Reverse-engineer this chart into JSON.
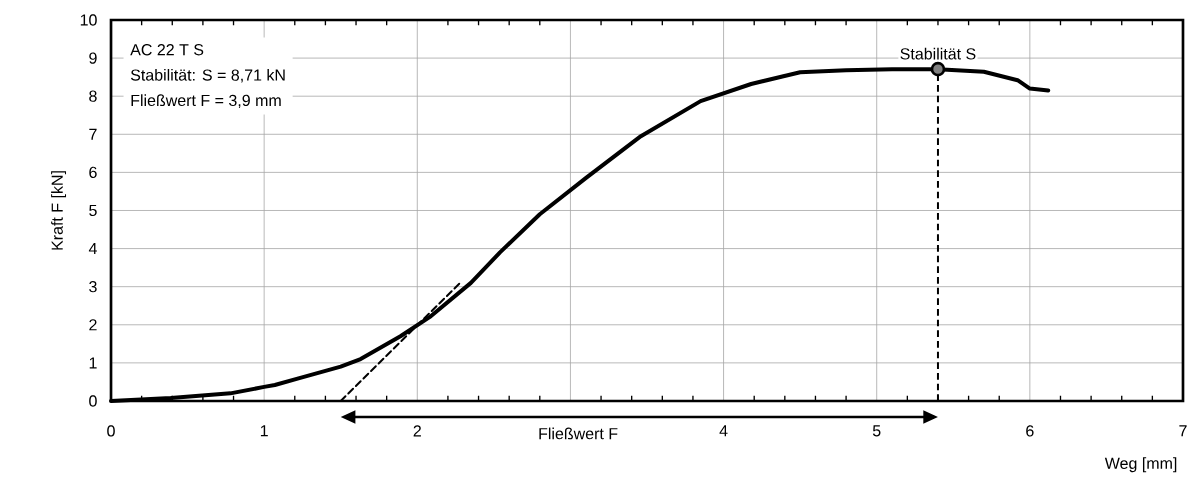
{
  "chart_data": {
    "type": "line",
    "xlabel": "Weg [mm]",
    "ylabel": "Kraft F [kN]",
    "xlim": [
      0,
      7
    ],
    "ylim": [
      0,
      10
    ],
    "xticks": [
      0,
      1,
      2,
      {
        "value": 3,
        "label": null
      },
      4,
      5,
      6,
      7
    ],
    "yticks": [
      0,
      1,
      2,
      3,
      4,
      5,
      6,
      7,
      8,
      9,
      10
    ],
    "grid": true,
    "series": [
      {
        "color": "#000000",
        "line_style": "solid",
        "x": [
          0,
          0.39,
          0.78,
          1.0,
          1.07,
          1.23,
          1.5,
          1.63,
          1.89,
          2.08,
          2.35,
          2.54,
          2.8,
          3.1,
          3.46,
          3.85,
          4.18,
          4.5,
          4.8,
          5.1,
          5.4,
          5.7,
          5.92,
          6.0,
          6.12
        ],
        "values": [
          0,
          0.08,
          0.2,
          0.37,
          0.42,
          0.6,
          0.9,
          1.1,
          1.7,
          2.2,
          3.1,
          3.9,
          4.9,
          5.85,
          6.95,
          7.87,
          8.32,
          8.63,
          8.68,
          8.71,
          8.71,
          8.64,
          8.42,
          8.2,
          8.15
        ]
      },
      {
        "color": "#000000",
        "line_style": "dashed",
        "x": [
          1.5,
          2.28
        ],
        "values": [
          0,
          3.1
        ]
      },
      {
        "type": "scatter",
        "color": "#808080",
        "marker": "circle",
        "x": [
          5.4
        ],
        "values": [
          8.71
        ]
      }
    ],
    "ref_lines": [
      {
        "axis": "x",
        "value": 5.4,
        "color": "#000000",
        "line_style": "dashed"
      }
    ],
    "annotations": [
      "AC 22 T S",
      "Stabilität: S = 8,71 kN",
      "Fließwert F = 3,9 mm",
      "Fließwert F",
      {
        "text": "Stabilität S",
        "x": 5.4,
        "y": 8.71
      }
    ]
  }
}
